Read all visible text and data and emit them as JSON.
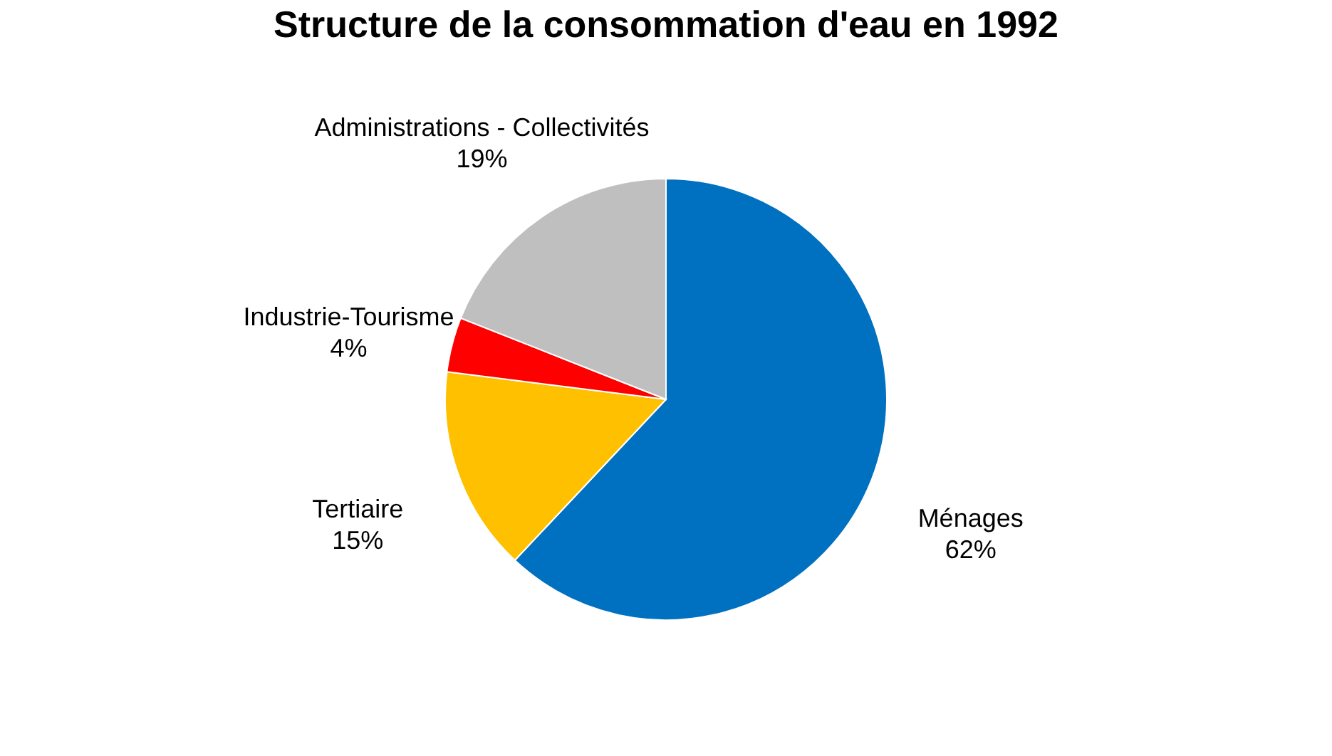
{
  "chart_data": {
    "type": "pie",
    "title": "Structure de la consommation d'eau en 1992",
    "categories": [
      "Ménages",
      "Tertiaire",
      "Industrie-Tourisme",
      "Administrations - Collectivités"
    ],
    "values": [
      62,
      15,
      4,
      19
    ],
    "value_labels": [
      "62%",
      "15%",
      "4%",
      "19%"
    ],
    "colors": [
      "#0070c0",
      "#ffc000",
      "#ff0000",
      "#bfbfbf"
    ]
  }
}
